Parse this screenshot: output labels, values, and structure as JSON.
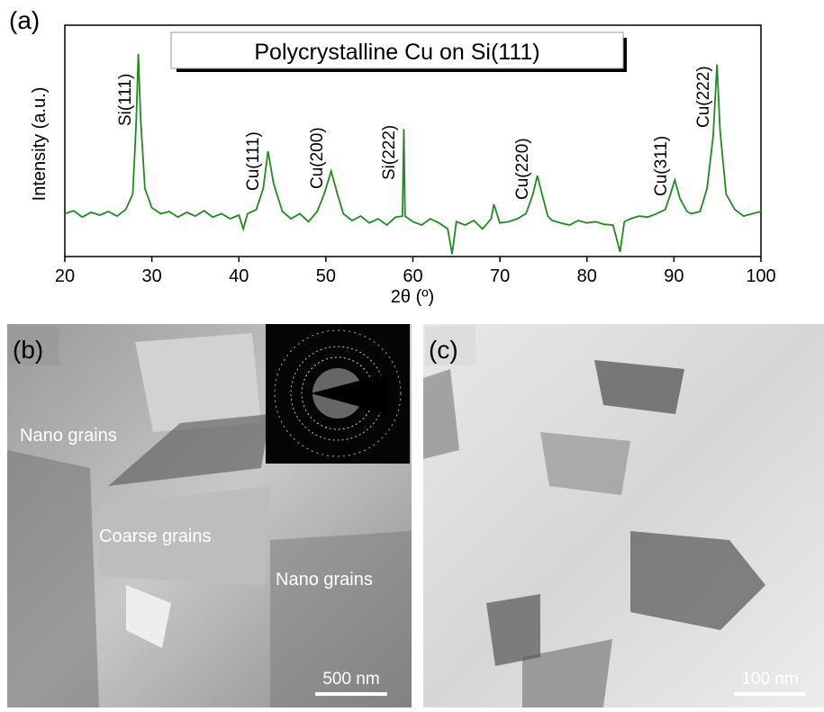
{
  "chart_data": {
    "type": "line",
    "panel_label": "(a)",
    "title": "Polycrystalline Cu on Si(111)",
    "x_label": "2θ (º)",
    "y_label": "Intensity (a.u.)",
    "log_y": true,
    "color": "#1e8c1e",
    "xlim": [
      20,
      100
    ],
    "xticks": [
      20,
      30,
      40,
      50,
      60,
      70,
      80,
      90,
      100
    ],
    "ylim": [
      10,
      100000
    ],
    "peak_labels": [
      "Si(111)",
      "Cu(111)",
      "Cu(200)",
      "Si(222)",
      "Cu(220)",
      "Cu(311)",
      "Cu(222)"
    ],
    "x": [
      20,
      21,
      22,
      23,
      24,
      25,
      26,
      27,
      27.8,
      28.2,
      28.45,
      28.7,
      29.2,
      30,
      31,
      32,
      33,
      34,
      35,
      36,
      37,
      38,
      39,
      40,
      40.5,
      41,
      42,
      42.8,
      43.35,
      44,
      45,
      46,
      47,
      48,
      49,
      49.8,
      50.6,
      51.4,
      52,
      53,
      54,
      55,
      56,
      57,
      58,
      58.8,
      58.95,
      59.1,
      60,
      61,
      62,
      63,
      64,
      64.5,
      65,
      66,
      67,
      68,
      69,
      69.3,
      70,
      71,
      72,
      73,
      73.8,
      74.3,
      74.9,
      75.5,
      76,
      77,
      78,
      79,
      80,
      81,
      82,
      83,
      83.8,
      84.3,
      85,
      86,
      87,
      88,
      89,
      89.6,
      90.1,
      90.7,
      91.5,
      92,
      93,
      93.8,
      94.5,
      94.95,
      95.3,
      96,
      97,
      98,
      99,
      100
    ],
    "y": [
      55,
      62,
      48,
      58,
      52,
      60,
      50,
      65,
      120,
      2000,
      32000,
      2500,
      150,
      70,
      55,
      60,
      48,
      58,
      50,
      62,
      48,
      55,
      45,
      52,
      30,
      55,
      65,
      150,
      660,
      180,
      60,
      45,
      55,
      40,
      60,
      120,
      300,
      110,
      55,
      42,
      50,
      38,
      45,
      35,
      48,
      50,
      1600,
      50,
      40,
      35,
      45,
      38,
      30,
      11,
      40,
      35,
      42,
      30,
      45,
      80,
      38,
      40,
      45,
      55,
      120,
      250,
      110,
      50,
      42,
      38,
      35,
      42,
      38,
      40,
      36,
      35,
      12,
      40,
      45,
      50,
      48,
      55,
      65,
      120,
      210,
      100,
      60,
      55,
      60,
      150,
      1200,
      21000,
      1500,
      120,
      65,
      50,
      55,
      60
    ]
  },
  "panel_b": {
    "label": "(b)",
    "annotations": [
      "Nano grains",
      "Coarse grains",
      "Nano grains"
    ],
    "scale_bar": "500 nm"
  },
  "panel_c": {
    "label": "(c)",
    "scale_bar": "100 nm"
  }
}
